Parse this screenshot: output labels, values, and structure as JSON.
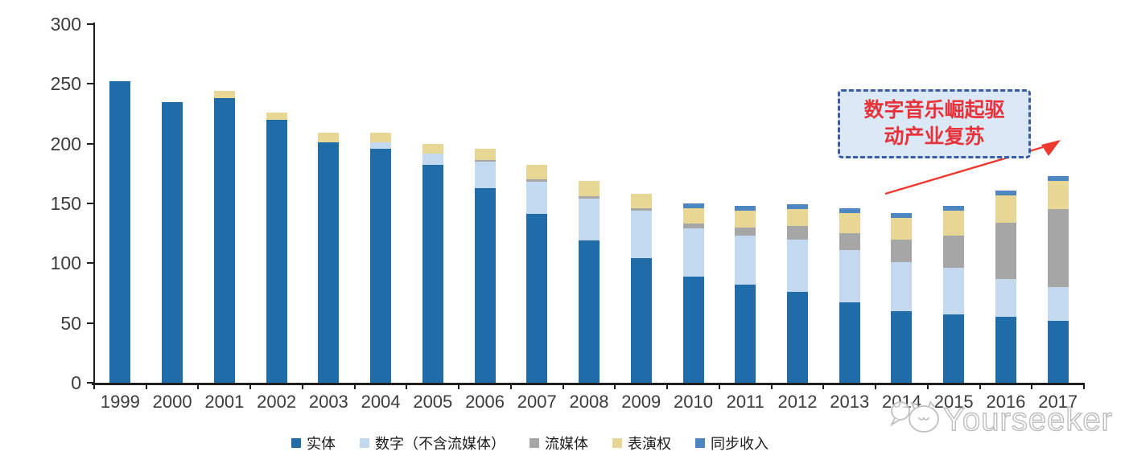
{
  "chart_data": {
    "type": "bar",
    "stacked": true,
    "categories": [
      "1999",
      "2000",
      "2001",
      "2002",
      "2003",
      "2004",
      "2005",
      "2006",
      "2007",
      "2008",
      "2009",
      "2010",
      "2011",
      "2012",
      "2013",
      "2014",
      "2015",
      "2016",
      "2017"
    ],
    "series": [
      {
        "name": "实体",
        "color": "#1f6ca9",
        "values": [
          252,
          235,
          238,
          220,
          201,
          196,
          182,
          163,
          141,
          119,
          104,
          89,
          82,
          76,
          67,
          60,
          57,
          55,
          52
        ]
      },
      {
        "name": "数字（不含流媒体）",
        "color": "#c3d9ef",
        "values": [
          0,
          0,
          0,
          0,
          0,
          5,
          10,
          22,
          27,
          35,
          40,
          40,
          41,
          44,
          44,
          41,
          39,
          32,
          28
        ]
      },
      {
        "name": "流媒体",
        "color": "#a6a6a6",
        "values": [
          0,
          0,
          0,
          0,
          0,
          0,
          0,
          1,
          2,
          2,
          2,
          4,
          7,
          11,
          14,
          19,
          27,
          47,
          65
        ]
      },
      {
        "name": "表演权",
        "color": "#e8d794",
        "values": [
          0,
          0,
          6,
          6,
          8,
          8,
          8,
          10,
          12,
          13,
          12,
          13,
          14,
          14,
          17,
          18,
          21,
          23,
          24
        ]
      },
      {
        "name": "同步收入",
        "color": "#4e86c0",
        "values": [
          0,
          0,
          0,
          0,
          0,
          0,
          0,
          0,
          0,
          0,
          0,
          4,
          4,
          4,
          4,
          4,
          4,
          4,
          4
        ]
      }
    ],
    "title": "",
    "xlabel": "",
    "ylabel": "",
    "ylim": [
      0,
      300
    ],
    "y_ticks": [
      "0",
      "50",
      "100",
      "150",
      "200",
      "250",
      "300"
    ],
    "grid": false,
    "legend_position": "bottom"
  },
  "annotation": {
    "line1": "数字音乐崛起驱",
    "line2": "动产业复苏",
    "text_color": "#e8333b",
    "box_fill": "#dbe8f6",
    "box_border": "#3d5ca8",
    "arrow_color": "#ef392f"
  },
  "watermark": {
    "text": "Yourseeker",
    "color": "#bdbdbd"
  }
}
